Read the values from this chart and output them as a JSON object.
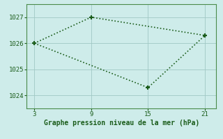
{
  "line1_x": [
    3,
    9,
    21
  ],
  "line1_y": [
    1026.0,
    1027.0,
    1026.3
  ],
  "line2_x": [
    3,
    15,
    21
  ],
  "line2_y": [
    1026.0,
    1024.3,
    1026.3
  ],
  "line_color": "#1a5c1a",
  "bg_color": "#ceecea",
  "grid_color": "#a0c8c4",
  "spine_color": "#4a8c4a",
  "xticks": [
    3,
    9,
    15,
    21
  ],
  "yticks": [
    1024,
    1025,
    1026,
    1027
  ],
  "ylim": [
    1023.5,
    1027.5
  ],
  "xlim": [
    2.2,
    22.2
  ],
  "xlabel": "Graphe pression niveau de la mer (hPa)",
  "xlabel_color": "#1a5c1a",
  "tick_color": "#1a5c1a",
  "marker": "+",
  "marker_size": 5,
  "linewidth1": 1.2,
  "linewidth2": 1.2,
  "tick_labelsize": 6.5
}
